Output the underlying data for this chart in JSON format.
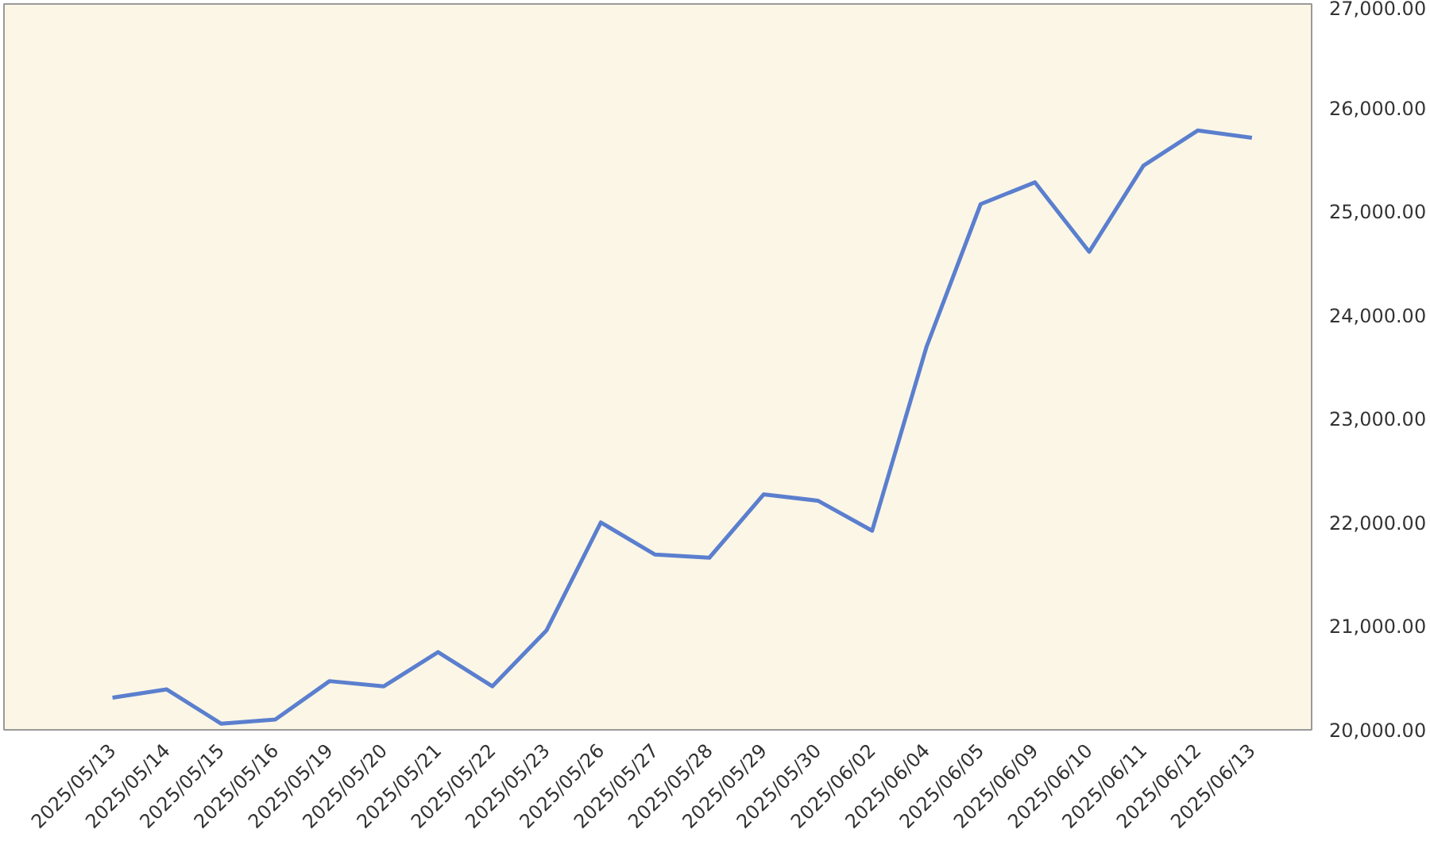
{
  "chart_data": {
    "type": "line",
    "categories": [
      "2025/05/13",
      "2025/05/14",
      "2025/05/15",
      "2025/05/16",
      "2025/05/19",
      "2025/05/20",
      "2025/05/21",
      "2025/05/22",
      "2025/05/23",
      "2025/05/26",
      "2025/05/27",
      "2025/05/28",
      "2025/05/29",
      "2025/05/30",
      "2025/06/02",
      "2025/06/04",
      "2025/06/05",
      "2025/06/09",
      "2025/06/10",
      "2025/06/11",
      "2025/06/12",
      "2025/06/13"
    ],
    "series": [
      {
        "color": "#5b7fce",
        "values": [
          20310,
          20390,
          20060,
          20100,
          20470,
          20420,
          20750,
          20420,
          20960,
          22000,
          21690,
          21660,
          22270,
          22210,
          21920,
          23690,
          25070,
          25280,
          24610,
          25440,
          25780,
          25710
        ]
      }
    ],
    "ylim": [
      20000,
      27000
    ],
    "yticks": [
      {
        "value": 20000,
        "label": "20,000.00"
      },
      {
        "value": 21000,
        "label": "21,000.00"
      },
      {
        "value": 22000,
        "label": "22,000.00"
      },
      {
        "value": 23000,
        "label": "23,000.00"
      },
      {
        "value": 24000,
        "label": "24,000.00"
      },
      {
        "value": 25000,
        "label": "25,000.00"
      },
      {
        "value": 26000,
        "label": "26,000.00"
      },
      {
        "value": 27000,
        "label": "27,000.00"
      }
    ],
    "line_style": "solid"
  }
}
